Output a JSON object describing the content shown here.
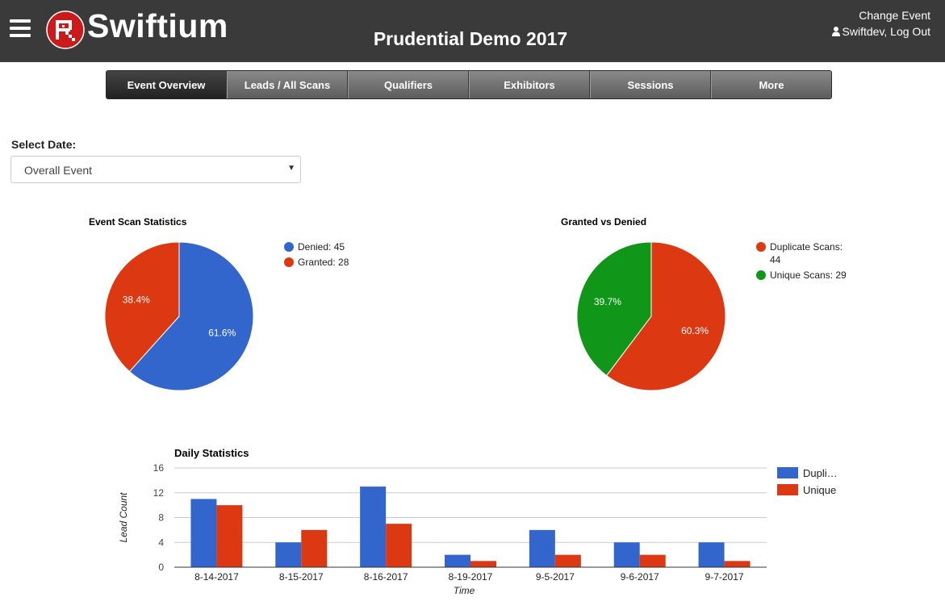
{
  "header": {
    "logo_text": "Swiftium",
    "event_title": "Prudential Demo 2017",
    "change_event": "Change Event",
    "user_link": "Swiftdev, Log Out"
  },
  "nav": {
    "tabs": [
      {
        "label": "Event Overview",
        "active": true
      },
      {
        "label": "Leads / All Scans",
        "active": false
      },
      {
        "label": "Qualifiers",
        "active": false
      },
      {
        "label": "Exhibitors",
        "active": false
      },
      {
        "label": "Sessions",
        "active": false
      },
      {
        "label": "More",
        "active": false
      }
    ]
  },
  "date_select": {
    "label": "Select Date:",
    "selected": "Overall Event"
  },
  "colors": {
    "blue": "#3366cc",
    "red": "#dc3912",
    "green": "#109618"
  },
  "chart_data": [
    {
      "type": "pie",
      "title": "Event Scan Statistics",
      "slices": [
        {
          "label": "Denied: 45",
          "value": 45,
          "percent_label": "61.6%",
          "color": "#3366cc"
        },
        {
          "label": "Granted: 28",
          "value": 28,
          "percent_label": "38.4%",
          "color": "#dc3912"
        }
      ]
    },
    {
      "type": "pie",
      "title": "Granted vs Denied",
      "slices": [
        {
          "label": "Duplicate Scans: 44",
          "legend_lines": [
            "Duplicate Scans:",
            "44"
          ],
          "value": 44,
          "percent_label": "60.3%",
          "color": "#dc3912"
        },
        {
          "label": "Unique Scans: 29",
          "legend_lines": [
            "Unique Scans: 29"
          ],
          "value": 29,
          "percent_label": "39.7%",
          "color": "#109618"
        }
      ]
    },
    {
      "type": "bar",
      "title": "Daily Statistics",
      "xlabel": "Time",
      "ylabel": "Lead Count",
      "ylim": [
        0,
        16
      ],
      "yticks": [
        0,
        4,
        8,
        12,
        16
      ],
      "categories": [
        "8-14-2017",
        "8-15-2017",
        "8-16-2017",
        "8-19-2017",
        "9-5-2017",
        "9-6-2017",
        "9-7-2017"
      ],
      "series": [
        {
          "name": "Dupli…",
          "color": "#3366cc",
          "values": [
            11,
            4,
            13,
            2,
            6,
            4,
            4
          ]
        },
        {
          "name": "Unique",
          "color": "#dc3912",
          "values": [
            10,
            6,
            7,
            1,
            2,
            2,
            1
          ]
        }
      ],
      "grid": true,
      "legend": "right"
    }
  ]
}
